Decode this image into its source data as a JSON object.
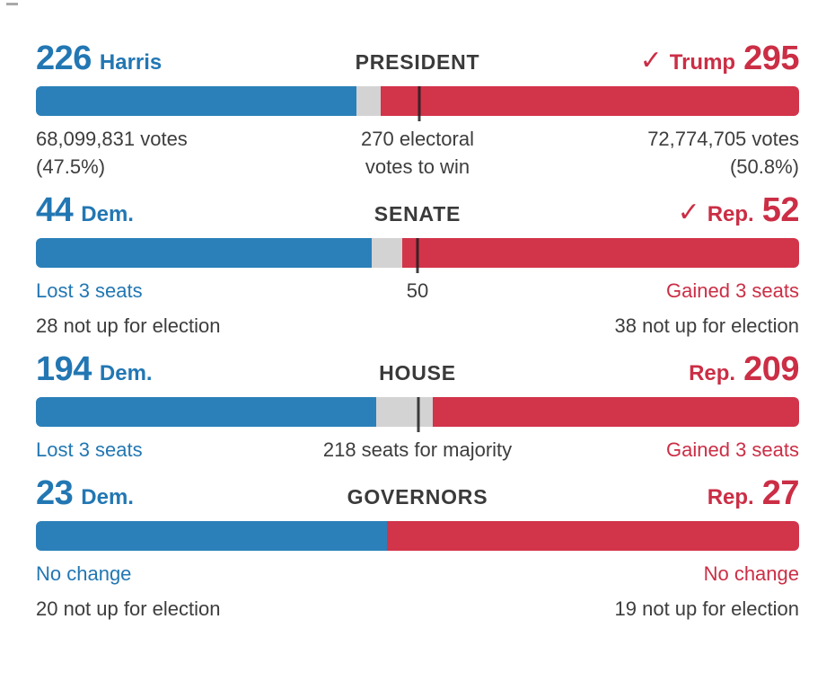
{
  "colors": {
    "dem_bar": "#2B80B9",
    "rep_bar": "#D2344A",
    "undecided": "#D3D3D3",
    "dem_text": "#2277B3",
    "rep_text": "#CB2E45",
    "dark_text": "#3D3D3D",
    "title_text": "#3A3A3A",
    "tick": "#1F1F1F"
  },
  "chart_data": [
    {
      "type": "bar",
      "race": "PRESIDENT",
      "series": [
        {
          "name": "Harris (Dem.)",
          "value": 226
        },
        {
          "name": "Uncalled",
          "value": 17
        },
        {
          "name": "Trump (Rep.)",
          "value": 295
        }
      ],
      "dem": 226,
      "uncalled": 17,
      "rep": 295,
      "total": 538,
      "threshold": 270,
      "threshold_label": "270 electoral votes to win",
      "winner": "Trump (Rep.)",
      "dem_note": "68,099,831 votes (47.5%)",
      "rep_note": "72,774,705 votes (50.8%)"
    },
    {
      "type": "bar",
      "race": "SENATE",
      "series": [
        {
          "name": "Dem.",
          "value": 44
        },
        {
          "name": "Uncalled",
          "value": 4
        },
        {
          "name": "Rep.",
          "value": 52
        }
      ],
      "dem": 44,
      "uncalled": 4,
      "rep": 52,
      "total": 100,
      "threshold": 50,
      "threshold_label": "50",
      "winner": "Rep.",
      "dem_note": "Lost 3 seats",
      "dem_note2": "28 not up for election",
      "rep_note": "Gained 3 seats",
      "rep_note2": "38 not up for election"
    },
    {
      "type": "bar",
      "race": "HOUSE",
      "series": [
        {
          "name": "Dem.",
          "value": 194
        },
        {
          "name": "Uncalled",
          "value": 32
        },
        {
          "name": "Rep.",
          "value": 209
        }
      ],
      "dem": 194,
      "uncalled": 32,
      "rep": 209,
      "total": 435,
      "threshold": 218,
      "threshold_label": "218 seats for majority",
      "winner": null,
      "dem_note": "Lost 3 seats",
      "rep_note": "Gained 3 seats"
    },
    {
      "type": "bar",
      "race": "GOVERNORS",
      "series": [
        {
          "name": "Dem.",
          "value": 23
        },
        {
          "name": "Rep.",
          "value": 27
        }
      ],
      "dem": 23,
      "uncalled": 0,
      "rep": 27,
      "total": 50,
      "threshold": null,
      "threshold_label": null,
      "winner": null,
      "dem_note": "No change",
      "dem_note2": "20 not up for election",
      "rep_note": "No change",
      "rep_note2": "19 not up for election"
    }
  ],
  "sections": [
    {
      "title": "PRESIDENT",
      "dem": {
        "value": "226",
        "label": "Harris"
      },
      "rep": {
        "value": "295",
        "label": "Trump",
        "check": "✓"
      },
      "stats": {
        "left1": "68,099,831 votes",
        "left2": "(47.5%)",
        "center1": "270 electoral",
        "center2": "votes to win",
        "right1": "72,774,705 votes",
        "right2": "(50.8%)"
      }
    },
    {
      "title": "SENATE",
      "dem": {
        "value": "44",
        "label": "Dem."
      },
      "rep": {
        "value": "52",
        "label": "Rep.",
        "check": "✓"
      },
      "stats": {
        "left1": "Lost 3 seats",
        "center1": "50",
        "right1": "Gained 3 seats",
        "left2": "28 not up for election",
        "right2": "38 not up for election"
      }
    },
    {
      "title": "HOUSE",
      "dem": {
        "value": "194",
        "label": "Dem."
      },
      "rep": {
        "value": "209",
        "label": "Rep."
      },
      "stats": {
        "left1": "Lost 3 seats",
        "center1": "218 seats for majority",
        "right1": "Gained 3 seats"
      }
    },
    {
      "title": "GOVERNORS",
      "dem": {
        "value": "23",
        "label": "Dem."
      },
      "rep": {
        "value": "27",
        "label": "Rep."
      },
      "stats": {
        "left1": "No change",
        "right1": "No change",
        "left2": "20 not up for election",
        "right2": "19 not up for election"
      }
    }
  ]
}
